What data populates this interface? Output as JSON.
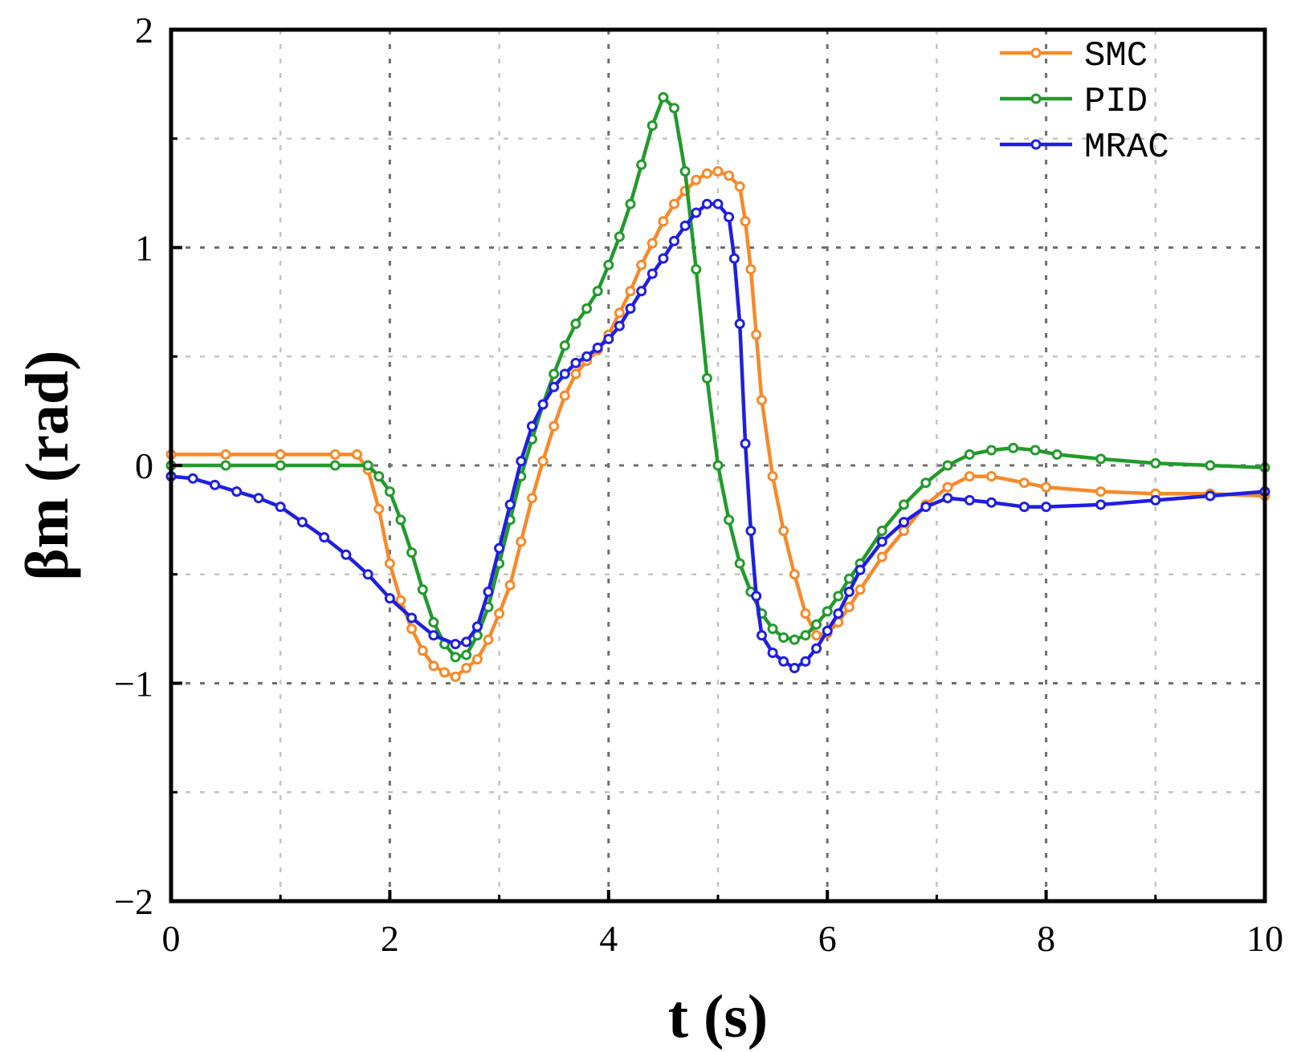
{
  "chart_data": {
    "type": "line",
    "title": "",
    "xlabel": "t (s)",
    "ylabel": "βm (rad)",
    "xlim": [
      0,
      10
    ],
    "ylim": [
      -2,
      2
    ],
    "xticks": [
      0,
      2,
      4,
      6,
      8,
      10
    ],
    "xtick_labels": [
      "0",
      "2",
      "4",
      "6",
      "8",
      "10"
    ],
    "yticks": [
      -2,
      -1,
      0,
      1,
      2
    ],
    "ytick_labels": [
      "−2",
      "−1",
      "0",
      "1",
      "2"
    ],
    "grid": true,
    "legend_position": "top-right",
    "series": [
      {
        "name": "SMC",
        "color": "#F58A2A",
        "points": [
          [
            0,
            0.05
          ],
          [
            0.5,
            0.05
          ],
          [
            1.0,
            0.05
          ],
          [
            1.5,
            0.05
          ],
          [
            1.7,
            0.05
          ],
          [
            1.8,
            -0.02
          ],
          [
            1.9,
            -0.2
          ],
          [
            2.0,
            -0.45
          ],
          [
            2.1,
            -0.62
          ],
          [
            2.2,
            -0.75
          ],
          [
            2.3,
            -0.85
          ],
          [
            2.4,
            -0.92
          ],
          [
            2.5,
            -0.95
          ],
          [
            2.6,
            -0.97
          ],
          [
            2.7,
            -0.93
          ],
          [
            2.8,
            -0.89
          ],
          [
            2.9,
            -0.8
          ],
          [
            3.0,
            -0.68
          ],
          [
            3.1,
            -0.55
          ],
          [
            3.2,
            -0.35
          ],
          [
            3.3,
            -0.15
          ],
          [
            3.4,
            0.02
          ],
          [
            3.5,
            0.18
          ],
          [
            3.6,
            0.32
          ],
          [
            3.7,
            0.42
          ],
          [
            3.8,
            0.48
          ],
          [
            3.9,
            0.53
          ],
          [
            4.0,
            0.6
          ],
          [
            4.1,
            0.7
          ],
          [
            4.2,
            0.8
          ],
          [
            4.3,
            0.92
          ],
          [
            4.4,
            1.02
          ],
          [
            4.5,
            1.12
          ],
          [
            4.6,
            1.2
          ],
          [
            4.7,
            1.26
          ],
          [
            4.8,
            1.31
          ],
          [
            4.9,
            1.34
          ],
          [
            5.0,
            1.35
          ],
          [
            5.1,
            1.33
          ],
          [
            5.2,
            1.28
          ],
          [
            5.25,
            1.12
          ],
          [
            5.3,
            0.9
          ],
          [
            5.35,
            0.6
          ],
          [
            5.4,
            0.3
          ],
          [
            5.5,
            -0.05
          ],
          [
            5.6,
            -0.3
          ],
          [
            5.7,
            -0.5
          ],
          [
            5.8,
            -0.68
          ],
          [
            5.9,
            -0.78
          ],
          [
            6.0,
            -0.77
          ],
          [
            6.1,
            -0.72
          ],
          [
            6.2,
            -0.65
          ],
          [
            6.3,
            -0.57
          ],
          [
            6.5,
            -0.42
          ],
          [
            6.7,
            -0.3
          ],
          [
            6.9,
            -0.18
          ],
          [
            7.1,
            -0.1
          ],
          [
            7.3,
            -0.05
          ],
          [
            7.5,
            -0.05
          ],
          [
            7.8,
            -0.08
          ],
          [
            8.0,
            -0.1
          ],
          [
            8.5,
            -0.12
          ],
          [
            9.0,
            -0.13
          ],
          [
            9.5,
            -0.13
          ],
          [
            10.0,
            -0.14
          ]
        ]
      },
      {
        "name": "PID",
        "color": "#229A2C",
        "points": [
          [
            0,
            0.0
          ],
          [
            0.5,
            0.0
          ],
          [
            1.0,
            0.0
          ],
          [
            1.5,
            0.0
          ],
          [
            1.8,
            0.0
          ],
          [
            1.9,
            -0.05
          ],
          [
            2.0,
            -0.12
          ],
          [
            2.1,
            -0.25
          ],
          [
            2.2,
            -0.4
          ],
          [
            2.3,
            -0.57
          ],
          [
            2.4,
            -0.72
          ],
          [
            2.5,
            -0.82
          ],
          [
            2.6,
            -0.88
          ],
          [
            2.7,
            -0.87
          ],
          [
            2.8,
            -0.78
          ],
          [
            2.9,
            -0.65
          ],
          [
            3.0,
            -0.45
          ],
          [
            3.1,
            -0.25
          ],
          [
            3.2,
            -0.05
          ],
          [
            3.3,
            0.12
          ],
          [
            3.4,
            0.28
          ],
          [
            3.5,
            0.42
          ],
          [
            3.6,
            0.55
          ],
          [
            3.7,
            0.65
          ],
          [
            3.8,
            0.72
          ],
          [
            3.9,
            0.8
          ],
          [
            4.0,
            0.92
          ],
          [
            4.1,
            1.05
          ],
          [
            4.2,
            1.2
          ],
          [
            4.3,
            1.38
          ],
          [
            4.4,
            1.56
          ],
          [
            4.5,
            1.69
          ],
          [
            4.6,
            1.64
          ],
          [
            4.7,
            1.35
          ],
          [
            4.8,
            0.9
          ],
          [
            4.9,
            0.4
          ],
          [
            5.0,
            0.0
          ],
          [
            5.1,
            -0.25
          ],
          [
            5.2,
            -0.45
          ],
          [
            5.3,
            -0.58
          ],
          [
            5.4,
            -0.68
          ],
          [
            5.5,
            -0.75
          ],
          [
            5.6,
            -0.79
          ],
          [
            5.7,
            -0.8
          ],
          [
            5.8,
            -0.78
          ],
          [
            5.9,
            -0.73
          ],
          [
            6.0,
            -0.67
          ],
          [
            6.1,
            -0.6
          ],
          [
            6.2,
            -0.52
          ],
          [
            6.3,
            -0.45
          ],
          [
            6.5,
            -0.3
          ],
          [
            6.7,
            -0.18
          ],
          [
            6.9,
            -0.08
          ],
          [
            7.1,
            0.0
          ],
          [
            7.3,
            0.05
          ],
          [
            7.5,
            0.07
          ],
          [
            7.7,
            0.08
          ],
          [
            7.9,
            0.07
          ],
          [
            8.1,
            0.05
          ],
          [
            8.5,
            0.03
          ],
          [
            9.0,
            0.01
          ],
          [
            9.5,
            0.0
          ],
          [
            10.0,
            -0.01
          ]
        ]
      },
      {
        "name": "MRAC",
        "color": "#1F1FE0",
        "points": [
          [
            0,
            -0.05
          ],
          [
            0.2,
            -0.06
          ],
          [
            0.4,
            -0.09
          ],
          [
            0.6,
            -0.12
          ],
          [
            0.8,
            -0.15
          ],
          [
            1.0,
            -0.19
          ],
          [
            1.2,
            -0.26
          ],
          [
            1.4,
            -0.33
          ],
          [
            1.6,
            -0.41
          ],
          [
            1.8,
            -0.5
          ],
          [
            2.0,
            -0.61
          ],
          [
            2.2,
            -0.7
          ],
          [
            2.4,
            -0.78
          ],
          [
            2.6,
            -0.82
          ],
          [
            2.7,
            -0.81
          ],
          [
            2.8,
            -0.74
          ],
          [
            2.9,
            -0.58
          ],
          [
            3.0,
            -0.38
          ],
          [
            3.1,
            -0.18
          ],
          [
            3.2,
            0.02
          ],
          [
            3.3,
            0.18
          ],
          [
            3.4,
            0.28
          ],
          [
            3.5,
            0.36
          ],
          [
            3.6,
            0.42
          ],
          [
            3.7,
            0.47
          ],
          [
            3.8,
            0.5
          ],
          [
            3.9,
            0.54
          ],
          [
            4.0,
            0.58
          ],
          [
            4.1,
            0.64
          ],
          [
            4.2,
            0.72
          ],
          [
            4.3,
            0.8
          ],
          [
            4.4,
            0.88
          ],
          [
            4.5,
            0.95
          ],
          [
            4.6,
            1.03
          ],
          [
            4.7,
            1.1
          ],
          [
            4.8,
            1.16
          ],
          [
            4.9,
            1.2
          ],
          [
            5.0,
            1.2
          ],
          [
            5.1,
            1.14
          ],
          [
            5.15,
            0.95
          ],
          [
            5.2,
            0.65
          ],
          [
            5.25,
            0.1
          ],
          [
            5.3,
            -0.3
          ],
          [
            5.35,
            -0.6
          ],
          [
            5.4,
            -0.78
          ],
          [
            5.5,
            -0.86
          ],
          [
            5.6,
            -0.9
          ],
          [
            5.7,
            -0.93
          ],
          [
            5.8,
            -0.9
          ],
          [
            5.9,
            -0.84
          ],
          [
            6.0,
            -0.76
          ],
          [
            6.1,
            -0.68
          ],
          [
            6.2,
            -0.58
          ],
          [
            6.3,
            -0.48
          ],
          [
            6.5,
            -0.35
          ],
          [
            6.7,
            -0.26
          ],
          [
            6.9,
            -0.19
          ],
          [
            7.1,
            -0.15
          ],
          [
            7.3,
            -0.16
          ],
          [
            7.5,
            -0.17
          ],
          [
            7.8,
            -0.19
          ],
          [
            8.0,
            -0.19
          ],
          [
            8.5,
            -0.18
          ],
          [
            9.0,
            -0.16
          ],
          [
            9.5,
            -0.14
          ],
          [
            10.0,
            -0.12
          ]
        ]
      }
    ]
  }
}
